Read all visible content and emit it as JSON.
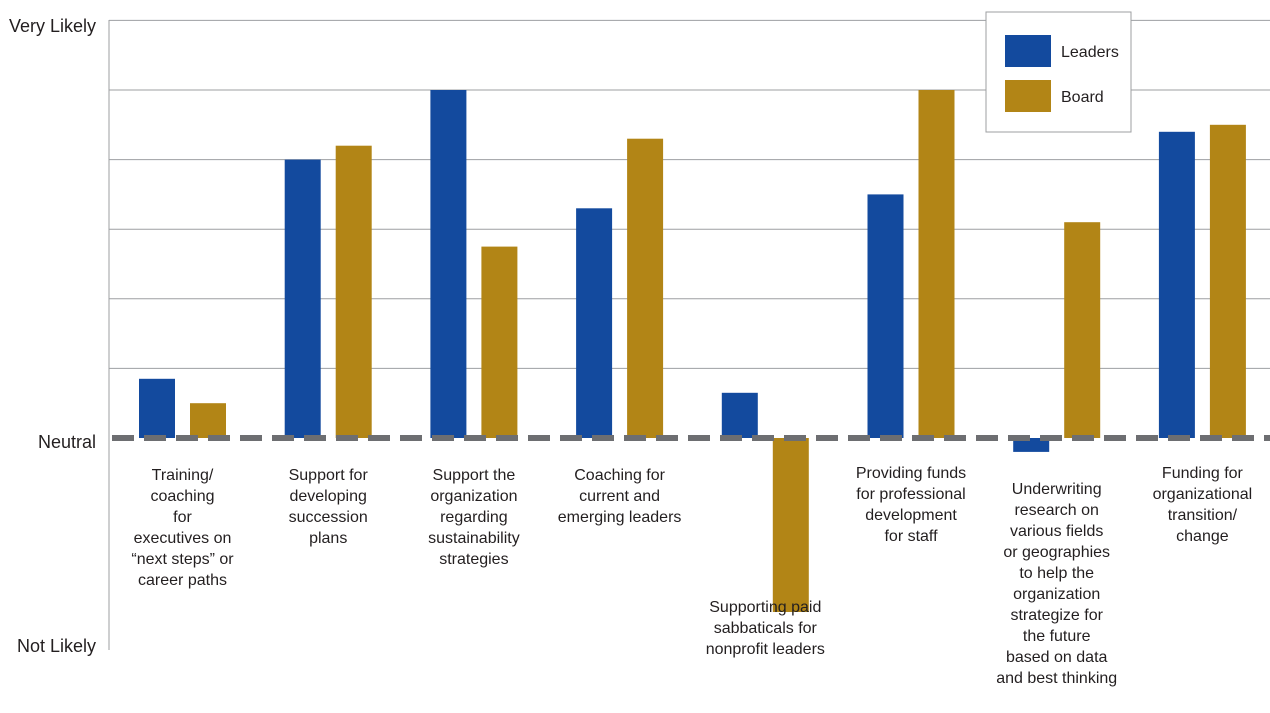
{
  "chart_data": {
    "type": "bar",
    "y_labels": {
      "top": "Very Likely",
      "middle": "Neutral",
      "bottom": "Not Likely"
    },
    "ylim": [
      -1,
      1
    ],
    "grid": true,
    "legend_position": "top-right",
    "categories": [
      [
        "Training/",
        "coaching",
        "for",
        "executives on",
        "“next steps” or",
        "career paths"
      ],
      [
        "Support for",
        "developing",
        "succession",
        "plans"
      ],
      [
        "Support the",
        "organization",
        "regarding",
        "sustainability",
        "strategies"
      ],
      [
        "Coaching for",
        "current and",
        "emerging leaders"
      ],
      [
        "Supporting paid",
        "sabbaticals for",
        "nonprofit leaders"
      ],
      [
        "Providing funds",
        "for professional",
        "development",
        "for staff"
      ],
      [
        "Underwriting",
        "research on",
        "various fields",
        "or geographies",
        "to help the",
        "organization",
        "strategize for",
        "the future",
        "based on data",
        "and best thinking"
      ],
      [
        "Funding for",
        "organizational",
        "transition/",
        "change"
      ]
    ],
    "series": [
      {
        "name": "Leaders",
        "color": "#134a9e",
        "values": [
          0.17,
          0.8,
          1.0,
          0.66,
          0.13,
          0.7,
          -0.04,
          0.88
        ]
      },
      {
        "name": "Board",
        "color": "#b28516",
        "values": [
          0.1,
          0.84,
          0.55,
          0.86,
          -0.5,
          1.0,
          0.62,
          0.9
        ]
      }
    ]
  }
}
